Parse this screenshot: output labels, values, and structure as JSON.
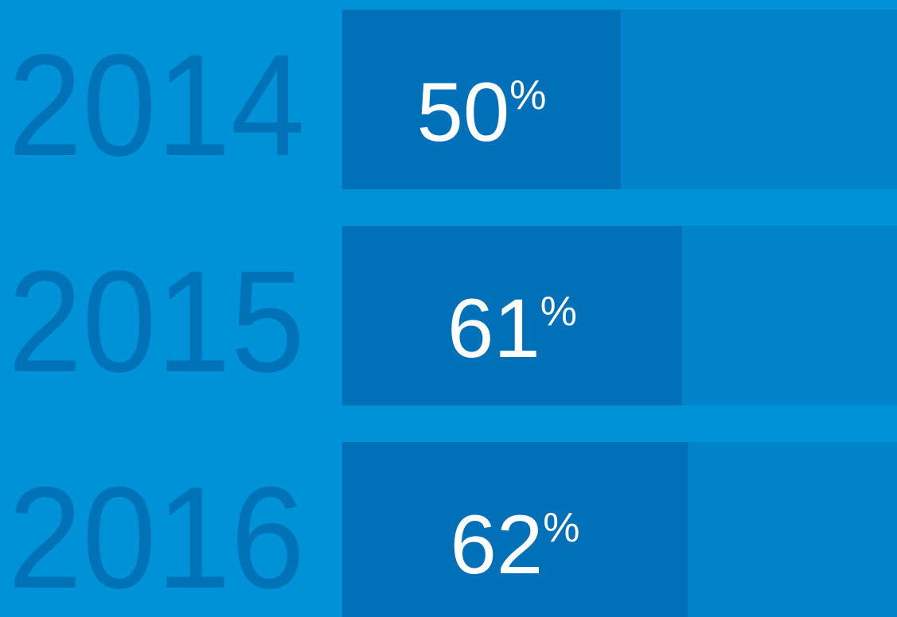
{
  "chart_data": {
    "type": "bar",
    "orientation": "horizontal",
    "categories": [
      "2014",
      "2015",
      "2016"
    ],
    "values": [
      50,
      61,
      62
    ],
    "value_labels": [
      "50%",
      "61%",
      "62%"
    ],
    "color": "#0070b8",
    "track_color": "#0083c9",
    "label_color": "#0072b8",
    "xlim": [
      0,
      100
    ]
  }
}
